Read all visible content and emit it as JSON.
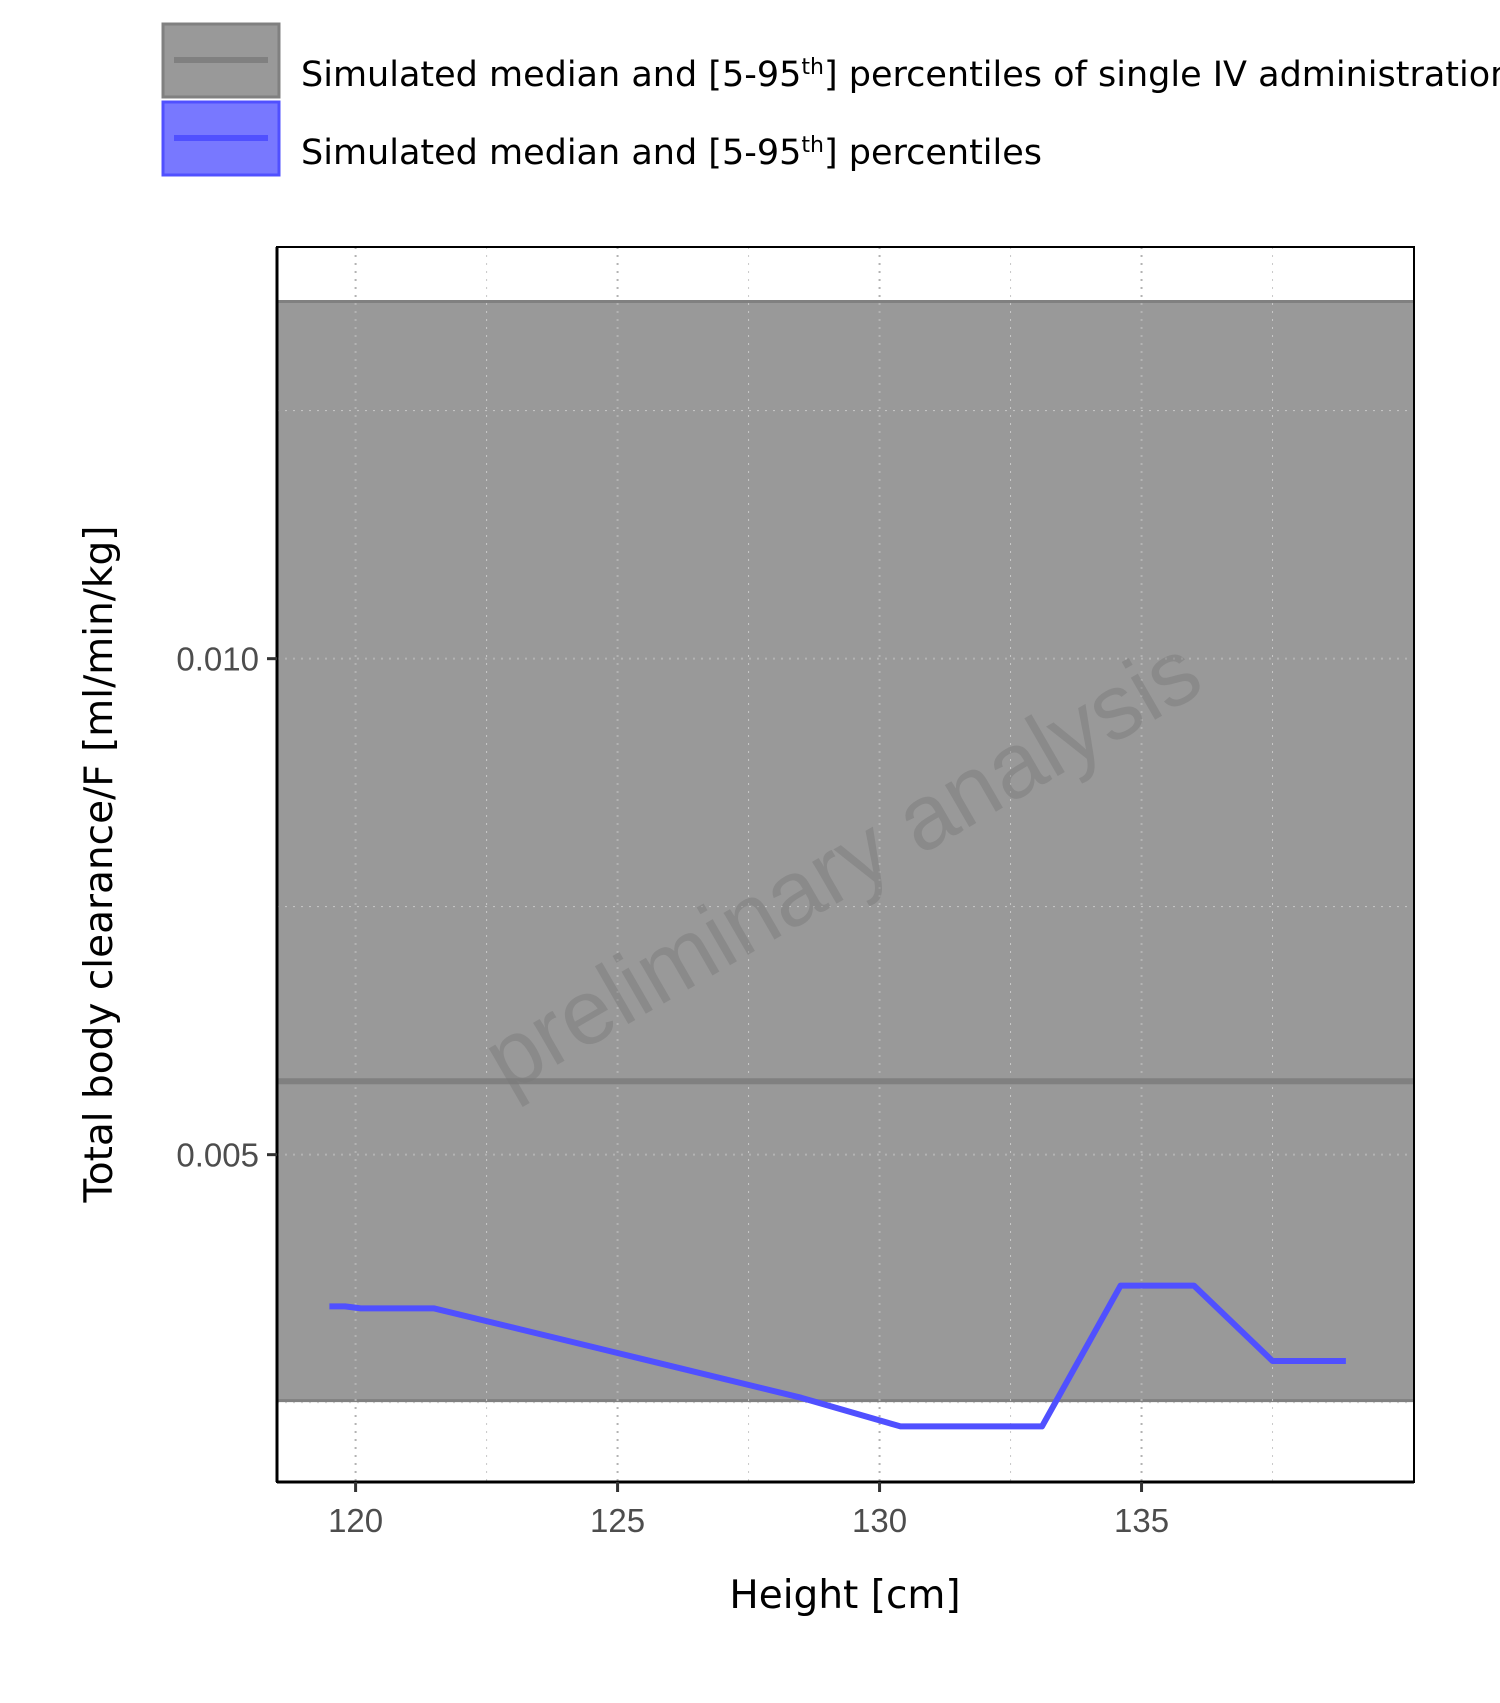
{
  "chart_data": {
    "type": "line",
    "xlabel": "Height [cm]",
    "ylabel": "Total body clearance/F [ml/min/kg]",
    "xlim": [
      118.5,
      140.2
    ],
    "ylim": [
      0.0017,
      0.01415
    ],
    "x_ticks": [
      120,
      125,
      130,
      135
    ],
    "x_tick_labels": [
      "120",
      "125",
      "130",
      "135"
    ],
    "y_ticks": [
      0.005,
      0.01
    ],
    "y_tick_labels": [
      "0.005",
      "0.010"
    ],
    "grid": "dotted",
    "legend_position": "top",
    "watermark": "preliminary analysis",
    "legend": [
      {
        "label_main": "Simulated median and [5-95",
        "label_sup": "th",
        "label_end": "] percentiles of single IV administration",
        "color": "#808080",
        "fill": "#999999"
      },
      {
        "label_main": "Simulated median and [5-95",
        "label_sup": "th",
        "label_end": "] percentiles",
        "color": "#5050ff",
        "fill": "#7878ff"
      }
    ],
    "series": [
      {
        "kind": "band",
        "color": "#808080",
        "fill": "#999999",
        "median": 0.00574,
        "p5": 0.00252,
        "p95": 0.0136
      },
      {
        "kind": "line",
        "color": "#5050ff",
        "x": [
          119.5,
          119.8,
          120.1,
          121.5,
          125.0,
          128.5,
          130.4,
          133.1,
          134.6,
          136.0,
          137.5,
          138.9
        ],
        "y": [
          0.00347,
          0.00347,
          0.00345,
          0.00345,
          0.003,
          0.00255,
          0.00226,
          0.00226,
          0.00368,
          0.00368,
          0.00292,
          0.00292
        ]
      }
    ]
  }
}
